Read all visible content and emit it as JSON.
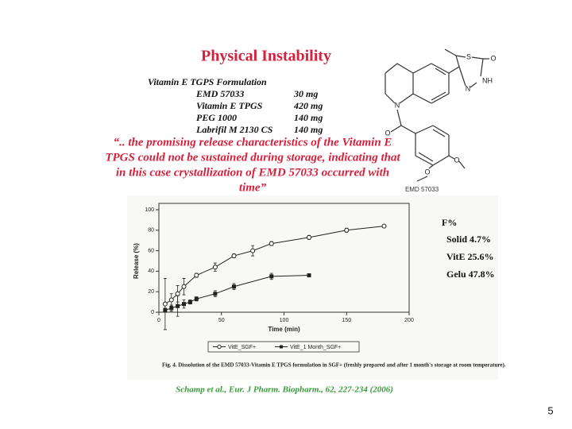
{
  "slide": {
    "title": "Physical Instability",
    "formulation": {
      "header": "Vitamin E TGPS Formulation",
      "rows": [
        [
          "EMD 57033",
          "30 mg"
        ],
        [
          "Vitamin E TPGS",
          "420 mg"
        ],
        [
          "PEG 1000",
          "140 mg"
        ],
        [
          "Labrifil M 2130 CS",
          "140 mg"
        ]
      ]
    },
    "quote": [
      "“.. the promising release characteristics of the Vitamin E",
      "TPGS could not be sustained during storage, indicating that",
      "in this case crystallization of EMD 57033 occurred with",
      "time”"
    ],
    "structure": {
      "name": "EMD 57033",
      "atoms": [
        "S",
        "O",
        "NH",
        "N",
        "N",
        "O",
        "O",
        "O"
      ]
    },
    "citation": "Schamp et al., Eur. J Pharm. Biopharm., 62, 227-234 (2006)",
    "page_number": "5",
    "bioavailability": {
      "title": "F%",
      "items": [
        "Solid 4.7%",
        "VitE  25.6%",
        "Gelu  47.8%"
      ]
    }
  },
  "chart_data": {
    "type": "line",
    "x_label": "Time (min)",
    "y_label": "Release (%)",
    "caption": "Fig. 4. Dissolution of the EMD 57033-Vitamin E TPGS formulation in SGF+ (freshly prepared and after 1 month's storage at room temperature).",
    "xlim": [
      0,
      200
    ],
    "ylim": [
      0,
      100
    ],
    "xticks": [
      0,
      50,
      100,
      150,
      200
    ],
    "yticks": [
      0,
      20,
      40,
      60,
      80,
      100
    ],
    "legend": "bottom",
    "series": [
      {
        "name": "VitE_SGF+",
        "color": "#222222",
        "marker": "open-circle",
        "x": [
          5,
          10,
          15,
          20,
          30,
          45,
          60,
          75,
          90,
          120,
          150,
          180
        ],
        "values": [
          8,
          12,
          18,
          25,
          36,
          44,
          55,
          60,
          67,
          73,
          80,
          84
        ],
        "errors": [
          25,
          6,
          8,
          8,
          2,
          4,
          2,
          5,
          2,
          2,
          2,
          1
        ]
      },
      {
        "name": "VitE_1 Month_SGF+",
        "color": "#222222",
        "marker": "filled-square",
        "x": [
          5,
          10,
          15,
          20,
          25,
          30,
          45,
          60,
          90,
          120
        ],
        "values": [
          2,
          4,
          6,
          8,
          10,
          13,
          18,
          25,
          35,
          36
        ],
        "errors": [
          2,
          3,
          10,
          4,
          2,
          2,
          3,
          3,
          3,
          1
        ]
      }
    ]
  }
}
